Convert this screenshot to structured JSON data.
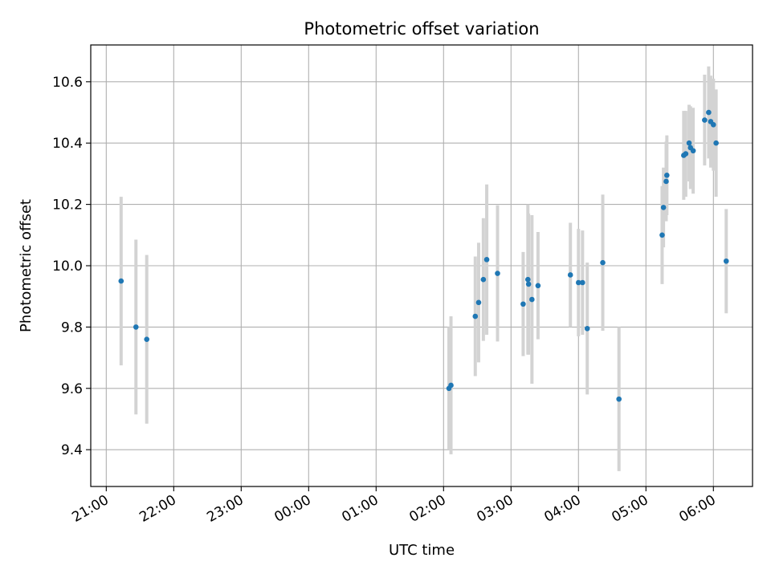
{
  "chart_data": {
    "type": "scatter",
    "title": "Photometric offset variation",
    "xlabel": "UTC time",
    "ylabel": "Photometric offset",
    "xlim": [
      -0.23,
      9.58
    ],
    "ylim": [
      9.28,
      10.72
    ],
    "grid": true,
    "x_ticks": [
      {
        "value": 0,
        "label": "21:00"
      },
      {
        "value": 1,
        "label": "22:00"
      },
      {
        "value": 2,
        "label": "23:00"
      },
      {
        "value": 3,
        "label": "00:00"
      },
      {
        "value": 4,
        "label": "01:00"
      },
      {
        "value": 5,
        "label": "02:00"
      },
      {
        "value": 6,
        "label": "03:00"
      },
      {
        "value": 7,
        "label": "04:00"
      },
      {
        "value": 8,
        "label": "05:00"
      },
      {
        "value": 9,
        "label": "06:00"
      }
    ],
    "y_ticks": [
      {
        "value": 9.4,
        "label": "9.4"
      },
      {
        "value": 9.6,
        "label": "9.6"
      },
      {
        "value": 9.8,
        "label": "9.8"
      },
      {
        "value": 10.0,
        "label": "10.0"
      },
      {
        "value": 10.2,
        "label": "10.2"
      },
      {
        "value": 10.4,
        "label": "10.4"
      },
      {
        "value": 10.6,
        "label": "10.6"
      }
    ],
    "colors": {
      "point": "#1f77b4",
      "errorbar": "#d3d3d3",
      "grid": "#b0b0b0"
    },
    "points": [
      {
        "x": 0.22,
        "y": 9.95,
        "err": 0.275
      },
      {
        "x": 0.44,
        "y": 9.8,
        "err": 0.285
      },
      {
        "x": 0.6,
        "y": 9.76,
        "err": 0.275
      },
      {
        "x": 5.08,
        "y": 9.6,
        "err": 0.2
      },
      {
        "x": 5.11,
        "y": 9.61,
        "err": 0.225
      },
      {
        "x": 5.47,
        "y": 9.835,
        "err": 0.195
      },
      {
        "x": 5.52,
        "y": 9.88,
        "err": 0.195
      },
      {
        "x": 5.59,
        "y": 9.955,
        "err": 0.2
      },
      {
        "x": 5.64,
        "y": 10.02,
        "err": 0.245
      },
      {
        "x": 5.8,
        "y": 9.975,
        "err": 0.222
      },
      {
        "x": 6.18,
        "y": 9.875,
        "err": 0.17
      },
      {
        "x": 6.25,
        "y": 9.955,
        "err": 0.245
      },
      {
        "x": 6.26,
        "y": 9.94,
        "err": 0.23
      },
      {
        "x": 6.31,
        "y": 9.89,
        "err": 0.275
      },
      {
        "x": 6.4,
        "y": 9.935,
        "err": 0.175
      },
      {
        "x": 6.88,
        "y": 9.97,
        "err": 0.17
      },
      {
        "x": 7.0,
        "y": 9.945,
        "err": 0.175
      },
      {
        "x": 7.06,
        "y": 9.945,
        "err": 0.17
      },
      {
        "x": 7.13,
        "y": 9.795,
        "err": 0.215
      },
      {
        "x": 7.36,
        "y": 10.01,
        "err": 0.222
      },
      {
        "x": 7.6,
        "y": 9.565,
        "err": 0.235
      },
      {
        "x": 8.24,
        "y": 10.1,
        "err": 0.16
      },
      {
        "x": 8.26,
        "y": 10.19,
        "err": 0.13
      },
      {
        "x": 8.3,
        "y": 10.275,
        "err": 0.13
      },
      {
        "x": 8.31,
        "y": 10.295,
        "err": 0.13
      },
      {
        "x": 8.56,
        "y": 10.36,
        "err": 0.145
      },
      {
        "x": 8.59,
        "y": 10.365,
        "err": 0.14
      },
      {
        "x": 8.64,
        "y": 10.4,
        "err": 0.125
      },
      {
        "x": 8.66,
        "y": 10.385,
        "err": 0.135
      },
      {
        "x": 8.7,
        "y": 10.375,
        "err": 0.14
      },
      {
        "x": 8.87,
        "y": 10.475,
        "err": 0.148
      },
      {
        "x": 8.93,
        "y": 10.5,
        "err": 0.15
      },
      {
        "x": 8.96,
        "y": 10.47,
        "err": 0.15
      },
      {
        "x": 9.0,
        "y": 10.46,
        "err": 0.15
      },
      {
        "x": 9.04,
        "y": 10.4,
        "err": 0.175
      },
      {
        "x": 9.19,
        "y": 10.015,
        "err": 0.17
      }
    ]
  }
}
